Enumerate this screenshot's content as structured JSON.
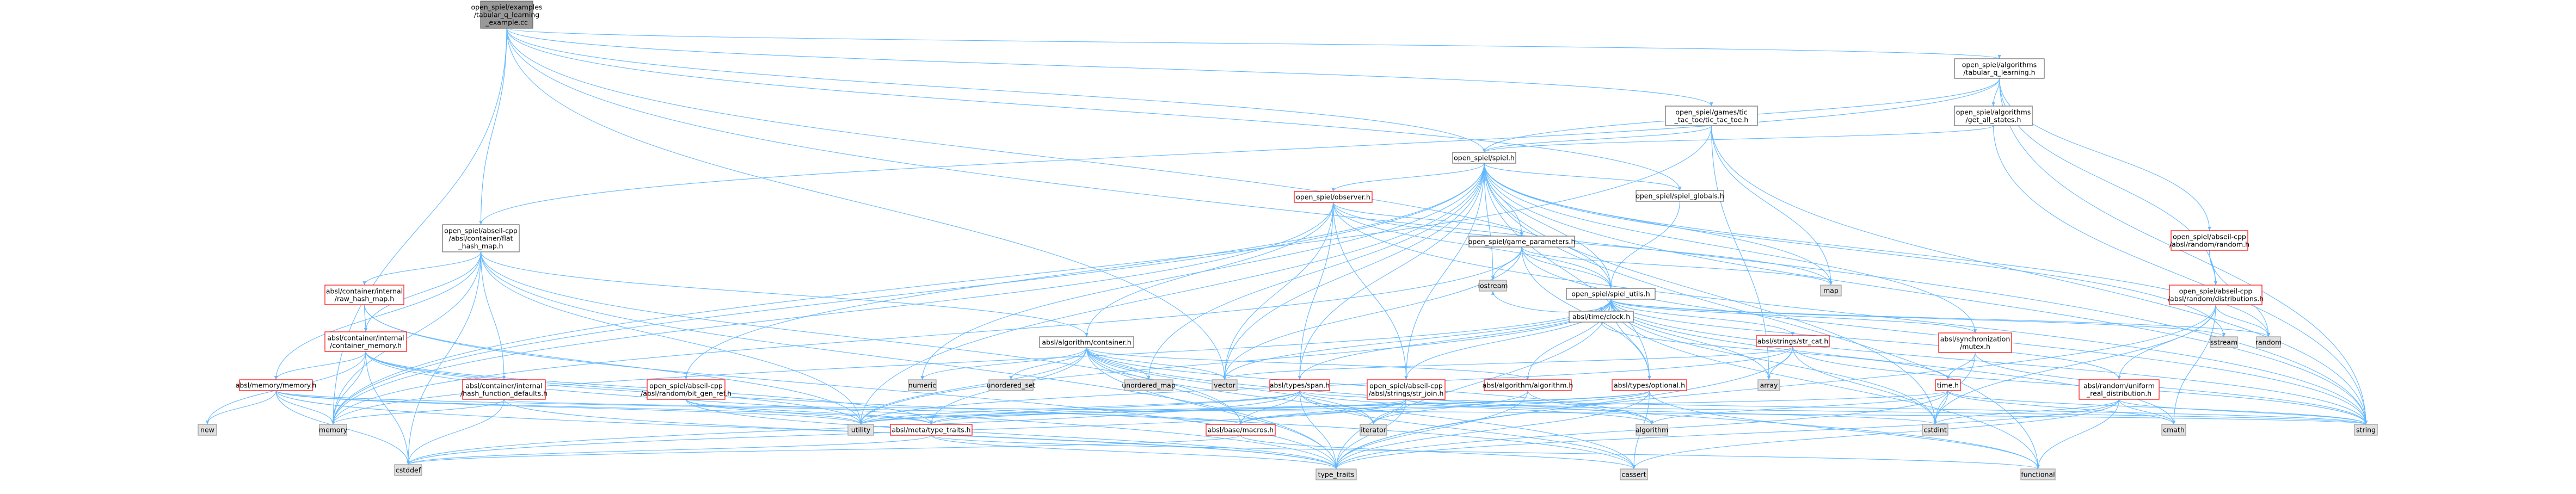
{
  "colors": {
    "edge": "#63b8ff",
    "root_fill": "#999999",
    "root_stroke": "#666666",
    "doc_fill": "#ffffff",
    "doc_stroke": "#666666",
    "doc_stroke_red": "#ff0000",
    "sys_fill": "#e0e0e0",
    "sys_stroke": "#999999"
  },
  "nodes": [
    {
      "id": "root",
      "lines": [
        "open_spiel/examples",
        "/tabular_q_learning",
        "_example.cc"
      ]
    },
    {
      "id": "tabq",
      "lines": [
        "open_spiel/algorithms",
        "/tabular_q_learning.h"
      ]
    },
    {
      "id": "getall",
      "lines": [
        "open_spiel/algorithms",
        "/get_all_states.h"
      ]
    },
    {
      "id": "tictac",
      "lines": [
        "open_spiel/games/tic",
        "_tac_toe/tic_tac_toe.h"
      ]
    },
    {
      "id": "spiel",
      "lines": [
        "open_spiel/spiel.h"
      ]
    },
    {
      "id": "flathash",
      "lines": [
        "open_spiel/abseil-cpp",
        "/absl/container/flat",
        "_hash_map.h"
      ]
    },
    {
      "id": "observer",
      "lines": [
        "open_spiel/observer.h"
      ]
    },
    {
      "id": "globals",
      "lines": [
        "open_spiel/spiel_globals.h"
      ]
    },
    {
      "id": "gameparams",
      "lines": [
        "open_spiel/game_parameters.h"
      ]
    },
    {
      "id": "absrandom",
      "lines": [
        "open_spiel/abseil-cpp",
        "/absl/random/random.h"
      ]
    },
    {
      "id": "distributions",
      "lines": [
        "open_spiel/abseil-cpp",
        "/absl/random/distributions.h"
      ]
    },
    {
      "id": "rawhash",
      "lines": [
        "absl/container/internal",
        "/raw_hash_map.h"
      ]
    },
    {
      "id": "iostream",
      "lines": [
        "iostream"
      ]
    },
    {
      "id": "map",
      "lines": [
        "map"
      ]
    },
    {
      "id": "utils",
      "lines": [
        "open_spiel/spiel_utils.h"
      ]
    },
    {
      "id": "containermem",
      "lines": [
        "absl/container/internal",
        "/container_memory.h"
      ]
    },
    {
      "id": "timeclock",
      "lines": [
        "absl/time/clock.h"
      ]
    },
    {
      "id": "strcat",
      "lines": [
        "absl/strings/str_cat.h"
      ]
    },
    {
      "id": "mutex",
      "lines": [
        "absl/synchronization",
        "/mutex.h"
      ]
    },
    {
      "id": "sstream",
      "lines": [
        "sstream"
      ]
    },
    {
      "id": "random",
      "lines": [
        "random"
      ]
    },
    {
      "id": "algcontainer",
      "lines": [
        "absl/algorithm/container.h"
      ]
    },
    {
      "id": "memmem",
      "lines": [
        "absl/memory/memory.h"
      ]
    },
    {
      "id": "hashfn",
      "lines": [
        "absl/container/internal",
        "/hash_function_defaults.h"
      ]
    },
    {
      "id": "genref",
      "lines": [
        "open_spiel/abseil-cpp",
        "/absl/random/bit_gen_ref.h"
      ]
    },
    {
      "id": "numeric",
      "lines": [
        "numeric"
      ]
    },
    {
      "id": "unordset",
      "lines": [
        "unordered_set"
      ]
    },
    {
      "id": "unordmap",
      "lines": [
        "unordered_map"
      ]
    },
    {
      "id": "vector",
      "lines": [
        "vector"
      ]
    },
    {
      "id": "span",
      "lines": [
        "absl/types/span.h"
      ]
    },
    {
      "id": "strjoin",
      "lines": [
        "open_spiel/abseil-cpp",
        "/absl/strings/str_join.h"
      ]
    },
    {
      "id": "algalg",
      "lines": [
        "absl/algorithm/algorithm.h"
      ]
    },
    {
      "id": "optional",
      "lines": [
        "absl/types/optional.h"
      ]
    },
    {
      "id": "array",
      "lines": [
        "array"
      ]
    },
    {
      "id": "time",
      "lines": [
        "time.h"
      ]
    },
    {
      "id": "uniformreal",
      "lines": [
        "absl/random/uniform",
        "_real_distribution.h"
      ]
    },
    {
      "id": "new",
      "lines": [
        "new"
      ]
    },
    {
      "id": "memory",
      "lines": [
        "memory"
      ]
    },
    {
      "id": "utility",
      "lines": [
        "utility"
      ]
    },
    {
      "id": "typetraits_meta",
      "lines": [
        "absl/meta/type_traits.h"
      ]
    },
    {
      "id": "macros",
      "lines": [
        "absl/base/macros.h"
      ]
    },
    {
      "id": "iterator",
      "lines": [
        "iterator"
      ]
    },
    {
      "id": "algorithm",
      "lines": [
        "algorithm"
      ]
    },
    {
      "id": "cstdint",
      "lines": [
        "cstdint"
      ]
    },
    {
      "id": "cmath",
      "lines": [
        "cmath"
      ]
    },
    {
      "id": "string",
      "lines": [
        "string"
      ]
    },
    {
      "id": "cstddef",
      "lines": [
        "cstddef"
      ]
    },
    {
      "id": "type_traits",
      "lines": [
        "type_traits"
      ]
    },
    {
      "id": "cassert",
      "lines": [
        "cassert"
      ]
    },
    {
      "id": "functional",
      "lines": [
        "functional"
      ]
    }
  ]
}
